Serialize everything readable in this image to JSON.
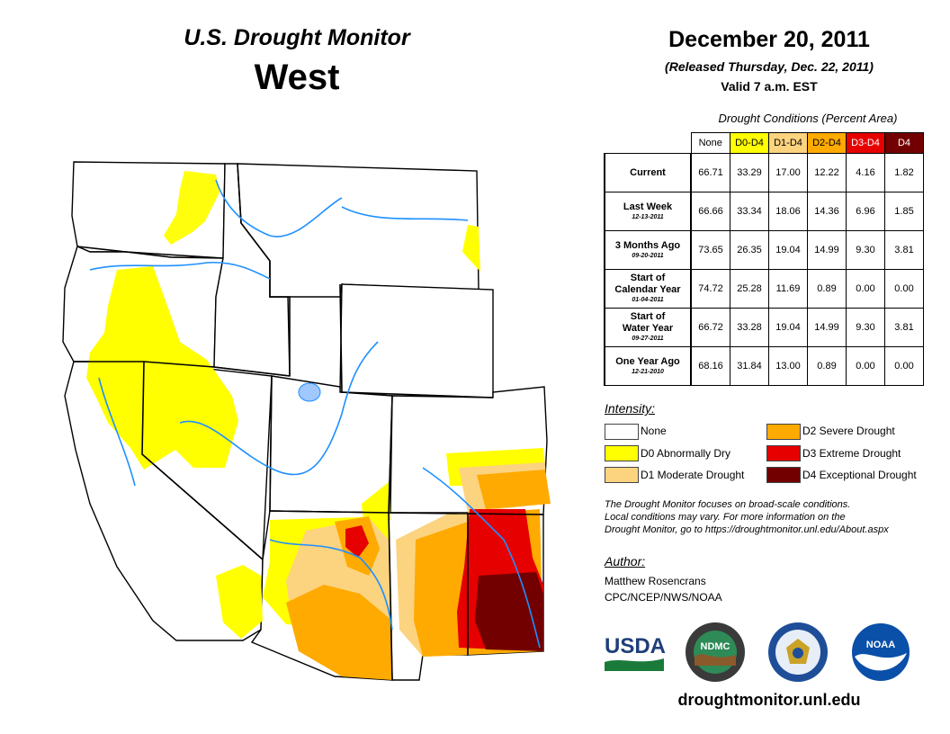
{
  "header": {
    "title": "U.S. Drought Monitor",
    "region": "West",
    "date": "December 20, 2011",
    "released": "(Released Thursday, Dec. 22, 2011)",
    "valid": "Valid 7 a.m. EST"
  },
  "table": {
    "title": "Drought Conditions (Percent Area)",
    "columns": [
      "None",
      "D0-D4",
      "D1-D4",
      "D2-D4",
      "D3-D4",
      "D4"
    ],
    "rows": [
      {
        "label": "Current",
        "label2": "",
        "date": "",
        "values": [
          "66.71",
          "33.29",
          "17.00",
          "12.22",
          "4.16",
          "1.82"
        ]
      },
      {
        "label": "Last Week",
        "label2": "",
        "date": "12-13-2011",
        "values": [
          "66.66",
          "33.34",
          "18.06",
          "14.36",
          "6.96",
          "1.85"
        ]
      },
      {
        "label": "3 Months Ago",
        "label2": "",
        "date": "09-20-2011",
        "values": [
          "73.65",
          "26.35",
          "19.04",
          "14.99",
          "9.30",
          "3.81"
        ]
      },
      {
        "label": "Start of",
        "label2": "Calendar Year",
        "date": "01-04-2011",
        "values": [
          "74.72",
          "25.28",
          "11.69",
          "0.89",
          "0.00",
          "0.00"
        ]
      },
      {
        "label": "Start of",
        "label2": "Water Year",
        "date": "09-27-2011",
        "values": [
          "66.72",
          "33.28",
          "19.04",
          "14.99",
          "9.30",
          "3.81"
        ]
      },
      {
        "label": "One Year Ago",
        "label2": "",
        "date": "12-21-2010",
        "values": [
          "68.16",
          "31.84",
          "13.00",
          "0.89",
          "0.00",
          "0.00"
        ]
      }
    ]
  },
  "legend": {
    "title": "Intensity:",
    "items": [
      {
        "label": "None",
        "color": "#ffffff"
      },
      {
        "label": "D0 Abnormally Dry",
        "color": "#ffff00"
      },
      {
        "label": "D1 Moderate Drought",
        "color": "#fcd37f"
      },
      {
        "label": "D2 Severe Drought",
        "color": "#ffaa00"
      },
      {
        "label": "D3 Extreme Drought",
        "color": "#e60000"
      },
      {
        "label": "D4 Exceptional Drought",
        "color": "#730000"
      }
    ]
  },
  "note": {
    "line1": "The Drought Monitor focuses on broad-scale conditions.",
    "line2": "Local conditions may vary. For more information on the",
    "line3": "Drought Monitor, go to https://droughtmonitor.unl.edu/About.aspx"
  },
  "author": {
    "title": "Author:",
    "name": "Matthew Rosencrans",
    "org": "CPC/NCEP/NWS/NOAA"
  },
  "logos": {
    "usda": "USDA",
    "ndmc": "NDMC",
    "noaa": "NOAA"
  },
  "footer": {
    "url": "droughtmonitor.unl.edu"
  }
}
